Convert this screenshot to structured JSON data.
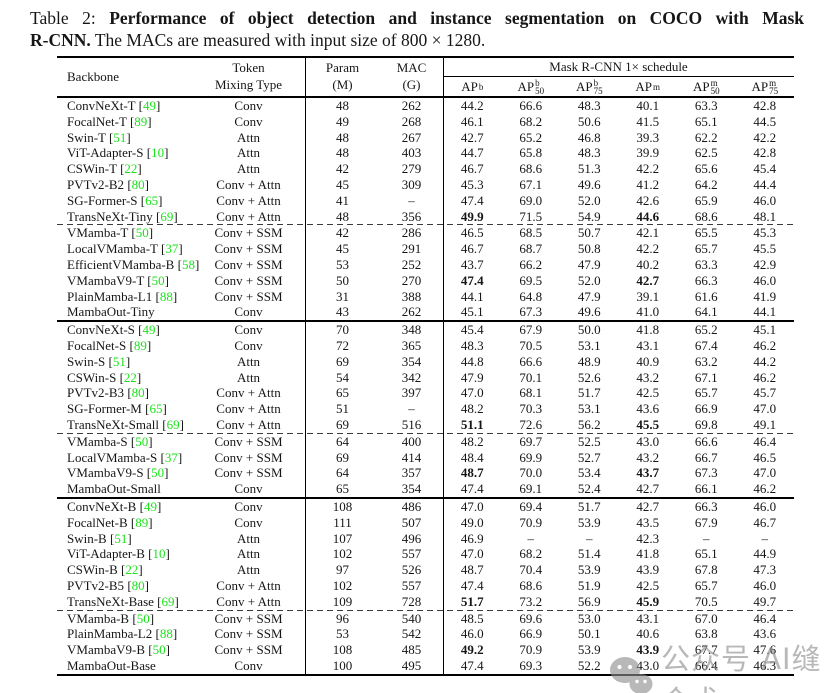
{
  "caption": {
    "label": "Table 2:",
    "bold1": "Performance of object detection and instance segmentation on COCO with Mask",
    "bold2": "R-CNN.",
    "rest": "The MACs are measured with input size of 800 × 1280."
  },
  "colors": {
    "citation_green": "#1ae21a",
    "watermark_gray": "#8e8e8e"
  },
  "watermark": {
    "icon": "wechat-icon",
    "text": "公众号 AI缝合术"
  },
  "table": {
    "headers": {
      "backbone": "Backbone",
      "token1": "Token",
      "token2": "Mixing Type",
      "param1": "Param",
      "param2": "(M)",
      "mac1": "MAC",
      "mac2": "(G)",
      "schedule": "Mask R-CNN 1× schedule",
      "ap_cols": [
        {
          "base": "AP",
          "sup": "b",
          "sub": ""
        },
        {
          "base": "AP",
          "sup": "b",
          "sub": "50"
        },
        {
          "base": "AP",
          "sup": "b",
          "sub": "75"
        },
        {
          "base": "AP",
          "sup": "m",
          "sub": ""
        },
        {
          "base": "AP",
          "sup": "m",
          "sub": "50"
        },
        {
          "base": "AP",
          "sup": "m",
          "sub": "75"
        }
      ]
    },
    "groups": [
      {
        "separator_after": "dashed",
        "rows": [
          {
            "backbone": "ConvNeXt-T",
            "cite": "49",
            "mixing": "Conv",
            "param": "48",
            "mac": "262",
            "values": [
              "44.2",
              "66.6",
              "48.3",
              "40.1",
              "63.3",
              "42.8"
            ],
            "bold": []
          },
          {
            "backbone": "FocalNet-T",
            "cite": "89",
            "mixing": "Conv",
            "param": "49",
            "mac": "268",
            "values": [
              "46.1",
              "68.2",
              "50.6",
              "41.5",
              "65.1",
              "44.5"
            ],
            "bold": []
          },
          {
            "backbone": "Swin-T",
            "cite": "51",
            "mixing": "Attn",
            "param": "48",
            "mac": "267",
            "values": [
              "42.7",
              "65.2",
              "46.8",
              "39.3",
              "62.2",
              "42.2"
            ],
            "bold": []
          },
          {
            "backbone": "ViT-Adapter-S",
            "cite": "10",
            "mixing": "Attn",
            "param": "48",
            "mac": "403",
            "values": [
              "44.7",
              "65.8",
              "48.3",
              "39.9",
              "62.5",
              "42.8"
            ],
            "bold": []
          },
          {
            "backbone": "CSWin-T",
            "cite": "22",
            "mixing": "Attn",
            "param": "42",
            "mac": "279",
            "values": [
              "46.7",
              "68.6",
              "51.3",
              "42.2",
              "65.6",
              "45.4"
            ],
            "bold": []
          },
          {
            "backbone": "PVTv2-B2",
            "cite": "80",
            "mixing": "Conv + Attn",
            "param": "45",
            "mac": "309",
            "values": [
              "45.3",
              "67.1",
              "49.6",
              "41.2",
              "64.2",
              "44.4"
            ],
            "bold": []
          },
          {
            "backbone": "SG-Former-S",
            "cite": "65",
            "mixing": "Conv + Attn",
            "param": "41",
            "mac": "–",
            "values": [
              "47.4",
              "69.0",
              "52.0",
              "42.6",
              "65.9",
              "46.0"
            ],
            "bold": []
          },
          {
            "backbone": "TransNeXt-Tiny",
            "cite": "69",
            "mixing": "Conv + Attn",
            "param": "48",
            "mac": "356",
            "values": [
              "49.9",
              "71.5",
              "54.9",
              "44.6",
              "68.6",
              "48.1"
            ],
            "bold": [
              0,
              3
            ]
          }
        ]
      },
      {
        "separator_after": "solid",
        "rows": [
          {
            "backbone": "VMamba-T",
            "cite": "50",
            "mixing": "Conv + SSM",
            "param": "42",
            "mac": "286",
            "values": [
              "46.5",
              "68.5",
              "50.7",
              "42.1",
              "65.5",
              "45.3"
            ],
            "bold": []
          },
          {
            "backbone": "LocalVMamba-T",
            "cite": "37",
            "mixing": "Conv + SSM",
            "param": "45",
            "mac": "291",
            "values": [
              "46.7",
              "68.7",
              "50.8",
              "42.2",
              "65.7",
              "45.5"
            ],
            "bold": []
          },
          {
            "backbone": "EfficientVMamba-B",
            "cite": "58",
            "mixing": "Conv + SSM",
            "param": "53",
            "mac": "252",
            "values": [
              "43.7",
              "66.2",
              "47.9",
              "40.2",
              "63.3",
              "42.9"
            ],
            "bold": []
          },
          {
            "backbone": "VMambaV9-T",
            "cite": "50",
            "mixing": "Conv + SSM",
            "param": "50",
            "mac": "270",
            "values": [
              "47.4",
              "69.5",
              "52.0",
              "42.7",
              "66.3",
              "46.0"
            ],
            "bold": [
              0,
              3
            ]
          },
          {
            "backbone": "PlainMamba-L1",
            "cite": "88",
            "mixing": "Conv + SSM",
            "param": "31",
            "mac": "388",
            "values": [
              "44.1",
              "64.8",
              "47.9",
              "39.1",
              "61.6",
              "41.9"
            ],
            "bold": []
          },
          {
            "backbone": "MambaOut-Tiny",
            "cite": null,
            "mixing": "Conv",
            "param": "43",
            "mac": "262",
            "values": [
              "45.1",
              "67.3",
              "49.6",
              "41.0",
              "64.1",
              "44.1"
            ],
            "bold": []
          }
        ]
      },
      {
        "separator_after": "dashed",
        "rows": [
          {
            "backbone": "ConvNeXt-S",
            "cite": "49",
            "mixing": "Conv",
            "param": "70",
            "mac": "348",
            "values": [
              "45.4",
              "67.9",
              "50.0",
              "41.8",
              "65.2",
              "45.1"
            ],
            "bold": []
          },
          {
            "backbone": "FocalNet-S",
            "cite": "89",
            "mixing": "Conv",
            "param": "72",
            "mac": "365",
            "values": [
              "48.3",
              "70.5",
              "53.1",
              "43.1",
              "67.4",
              "46.2"
            ],
            "bold": []
          },
          {
            "backbone": "Swin-S",
            "cite": "51",
            "mixing": "Attn",
            "param": "69",
            "mac": "354",
            "values": [
              "44.8",
              "66.6",
              "48.9",
              "40.9",
              "63.2",
              "44.2"
            ],
            "bold": []
          },
          {
            "backbone": "CSWin-S",
            "cite": "22",
            "mixing": "Attn",
            "param": "54",
            "mac": "342",
            "values": [
              "47.9",
              "70.1",
              "52.6",
              "43.2",
              "67.1",
              "46.2"
            ],
            "bold": []
          },
          {
            "backbone": "PVTv2-B3",
            "cite": "80",
            "mixing": "Conv + Attn",
            "param": "65",
            "mac": "397",
            "values": [
              "47.0",
              "68.1",
              "51.7",
              "42.5",
              "65.7",
              "45.7"
            ],
            "bold": []
          },
          {
            "backbone": "SG-Former-M",
            "cite": "65",
            "mixing": "Conv + Attn",
            "param": "51",
            "mac": "–",
            "values": [
              "48.2",
              "70.3",
              "53.1",
              "43.6",
              "66.9",
              "47.0"
            ],
            "bold": []
          },
          {
            "backbone": "TransNeXt-Small",
            "cite": "69",
            "mixing": "Conv + Attn",
            "param": "69",
            "mac": "516",
            "values": [
              "51.1",
              "72.6",
              "56.2",
              "45.5",
              "69.8",
              "49.1"
            ],
            "bold": [
              0,
              3
            ]
          }
        ]
      },
      {
        "separator_after": "solid",
        "rows": [
          {
            "backbone": "VMamba-S",
            "cite": "50",
            "mixing": "Conv + SSM",
            "param": "64",
            "mac": "400",
            "values": [
              "48.2",
              "69.7",
              "52.5",
              "43.0",
              "66.6",
              "46.4"
            ],
            "bold": []
          },
          {
            "backbone": "LocalVMamba-S",
            "cite": "37",
            "mixing": "Conv + SSM",
            "param": "69",
            "mac": "414",
            "values": [
              "48.4",
              "69.9",
              "52.7",
              "43.2",
              "66.7",
              "46.5"
            ],
            "bold": []
          },
          {
            "backbone": "VMambaV9-S",
            "cite": "50",
            "mixing": "Conv + SSM",
            "param": "64",
            "mac": "357",
            "values": [
              "48.7",
              "70.0",
              "53.4",
              "43.7",
              "67.3",
              "47.0"
            ],
            "bold": [
              0,
              3
            ]
          },
          {
            "backbone": "MambaOut-Small",
            "cite": null,
            "mixing": "Conv",
            "param": "65",
            "mac": "354",
            "values": [
              "47.4",
              "69.1",
              "52.4",
              "42.7",
              "66.1",
              "46.2"
            ],
            "bold": []
          }
        ]
      },
      {
        "separator_after": "dashed",
        "rows": [
          {
            "backbone": "ConvNeXt-B",
            "cite": "49",
            "mixing": "Conv",
            "param": "108",
            "mac": "486",
            "values": [
              "47.0",
              "69.4",
              "51.7",
              "42.7",
              "66.3",
              "46.0"
            ],
            "bold": []
          },
          {
            "backbone": "FocalNet-B",
            "cite": "89",
            "mixing": "Conv",
            "param": "111",
            "mac": "507",
            "values": [
              "49.0",
              "70.9",
              "53.9",
              "43.5",
              "67.9",
              "46.7"
            ],
            "bold": []
          },
          {
            "backbone": "Swin-B",
            "cite": "51",
            "mixing": "Attn",
            "param": "107",
            "mac": "496",
            "values": [
              "46.9",
              "–",
              "–",
              "42.3",
              "–",
              "–"
            ],
            "bold": []
          },
          {
            "backbone": "ViT-Adapter-B",
            "cite": "10",
            "mixing": "Attn",
            "param": "102",
            "mac": "557",
            "values": [
              "47.0",
              "68.2",
              "51.4",
              "41.8",
              "65.1",
              "44.9"
            ],
            "bold": []
          },
          {
            "backbone": "CSWin-B",
            "cite": "22",
            "mixing": "Attn",
            "param": "97",
            "mac": "526",
            "values": [
              "48.7",
              "70.4",
              "53.9",
              "43.9",
              "67.8",
              "47.3"
            ],
            "bold": []
          },
          {
            "backbone": "PVTv2-B5",
            "cite": "80",
            "mixing": "Conv + Attn",
            "param": "102",
            "mac": "557",
            "values": [
              "47.4",
              "68.6",
              "51.9",
              "42.5",
              "65.7",
              "46.0"
            ],
            "bold": []
          },
          {
            "backbone": "TransNeXt-Base",
            "cite": "69",
            "mixing": "Conv + Attn",
            "param": "109",
            "mac": "728",
            "values": [
              "51.7",
              "73.2",
              "56.9",
              "45.9",
              "70.5",
              "49.7"
            ],
            "bold": [
              0,
              3
            ]
          }
        ]
      },
      {
        "separator_after": "none",
        "rows": [
          {
            "backbone": "VMamba-B",
            "cite": "50",
            "mixing": "Conv + SSM",
            "param": "96",
            "mac": "540",
            "values": [
              "48.5",
              "69.6",
              "53.0",
              "43.1",
              "67.0",
              "46.4"
            ],
            "bold": []
          },
          {
            "backbone": "PlainMamba-L2",
            "cite": "88",
            "mixing": "Conv + SSM",
            "param": "53",
            "mac": "542",
            "values": [
              "46.0",
              "66.9",
              "50.1",
              "40.6",
              "63.8",
              "43.6"
            ],
            "bold": []
          },
          {
            "backbone": "VMambaV9-B",
            "cite": "50",
            "mixing": "Conv + SSM",
            "param": "108",
            "mac": "485",
            "values": [
              "49.2",
              "70.9",
              "53.9",
              "43.9",
              "67.7",
              "47.6"
            ],
            "bold": [
              0,
              3
            ]
          },
          {
            "backbone": "MambaOut-Base",
            "cite": null,
            "mixing": "Conv",
            "param": "100",
            "mac": "495",
            "values": [
              "47.4",
              "69.3",
              "52.2",
              "43.0",
              "66.4",
              "46.3"
            ],
            "bold": []
          }
        ]
      }
    ]
  }
}
